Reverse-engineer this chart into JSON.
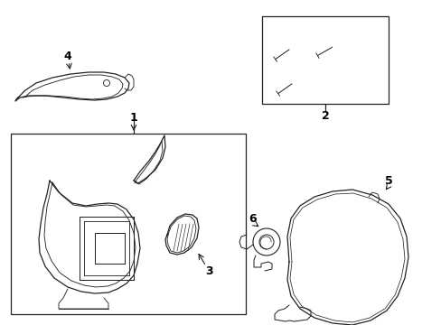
{
  "background_color": "#ffffff",
  "line_color": "#222222",
  "text_color": "#000000",
  "lw": 0.9
}
